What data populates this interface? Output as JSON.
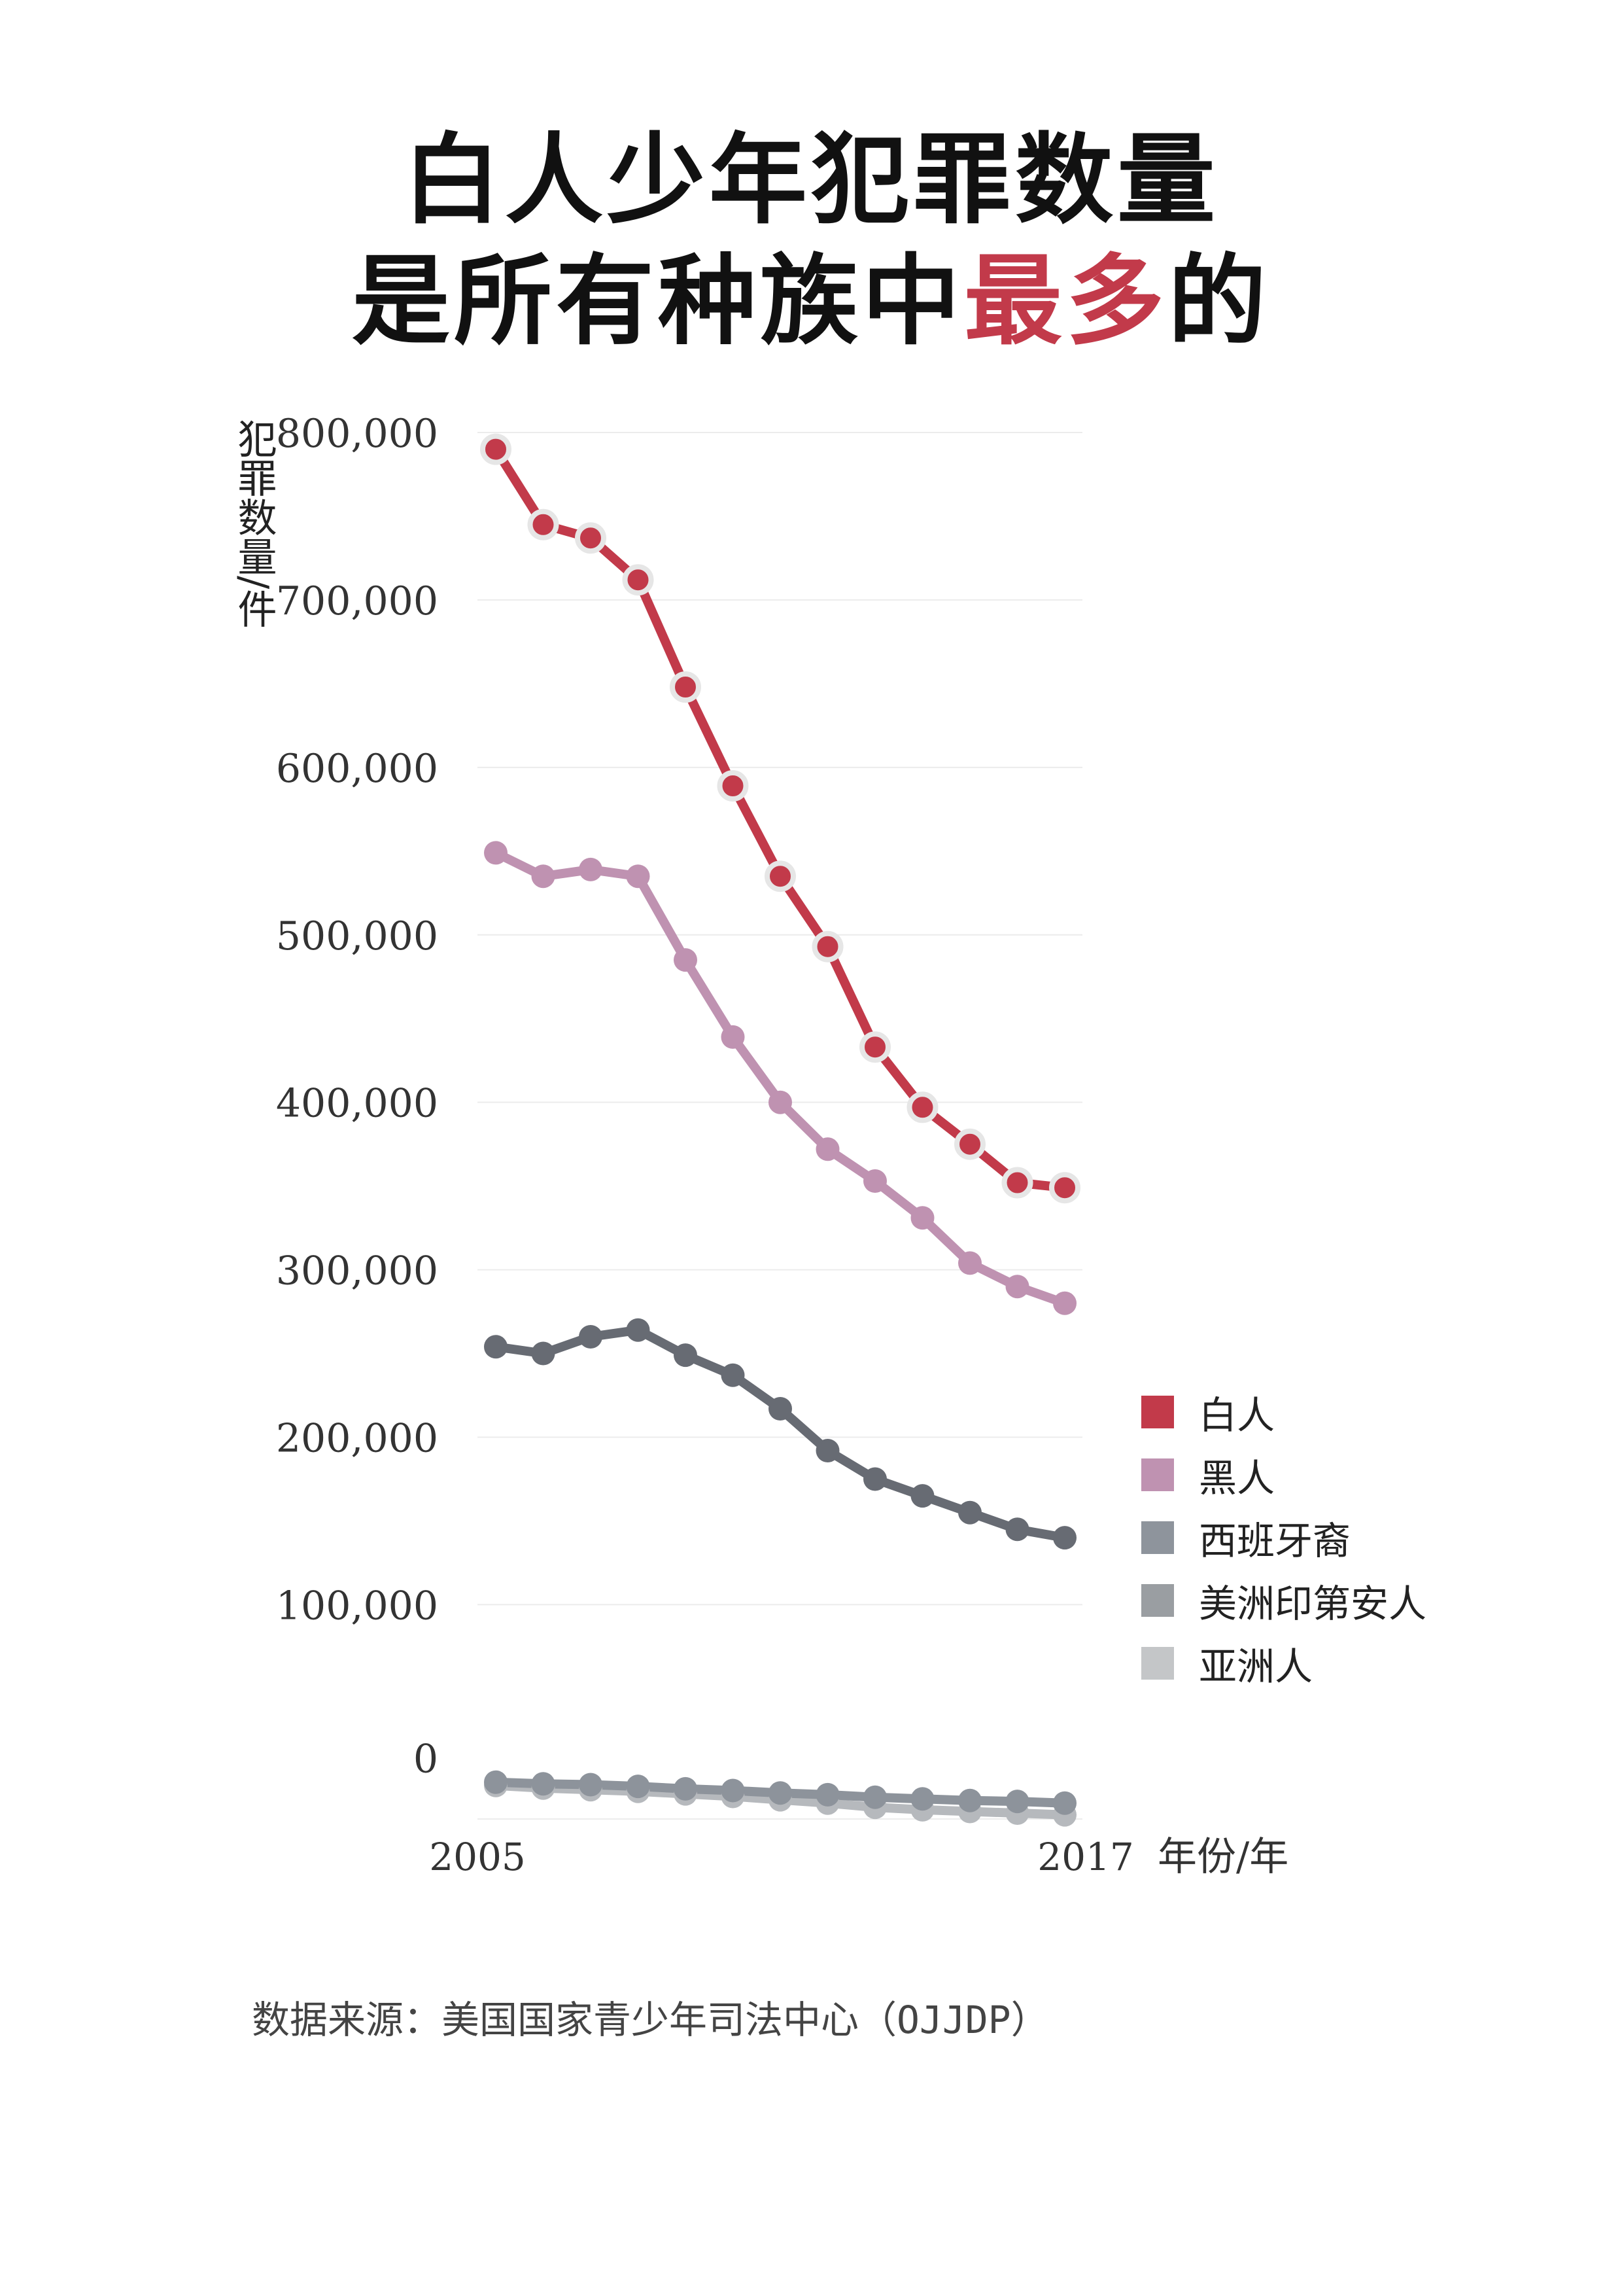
{
  "title": {
    "line1": "白人少年犯罪数量",
    "line2_pre": "是所有种族中",
    "line2_accent": "最多",
    "line2_post": "的"
  },
  "source": "数据来源：美国国家青少年司法中心（OJJDP）",
  "colors": {
    "accent": "#c23a4a"
  },
  "chart_data": {
    "type": "line",
    "title": "白人少年犯罪数量是所有种族中最多的",
    "ylabel": "犯罪数量/件",
    "xlabel": "年份/年",
    "x": [
      2005,
      2006,
      2007,
      2008,
      2009,
      2010,
      2011,
      2012,
      2013,
      2014,
      2015,
      2016,
      2017
    ],
    "x_tick_labels": [
      "2005",
      "2017"
    ],
    "y_ticks": [
      0,
      100000,
      200000,
      300000,
      400000,
      500000,
      600000,
      700000,
      800000
    ],
    "y_tick_labels": [
      "0",
      "100,000",
      "200,000",
      "300,000",
      "400,000",
      "500,000",
      "600,000",
      "700,000",
      "800,000"
    ],
    "ylim": [
      -28000,
      800000
    ],
    "grid": true,
    "legend": "right",
    "series": [
      {
        "name": "白人",
        "color": "#c23a4a",
        "markerStroke": "#e6e6e6",
        "values": [
          790000,
          745000,
          737000,
          712000,
          648000,
          589000,
          535000,
          493000,
          433000,
          397000,
          375000,
          352000,
          349000
        ]
      },
      {
        "name": "黑人",
        "color": "#bf92b1",
        "markerStroke": null,
        "values": [
          549000,
          535000,
          539000,
          535000,
          485000,
          439000,
          400000,
          372000,
          353000,
          331000,
          304000,
          290000,
          280000
        ]
      },
      {
        "name": "西班牙裔",
        "color": "#676b73",
        "legendColor": "#8e949c",
        "markerStroke": null,
        "values": [
          254000,
          250000,
          260000,
          264000,
          249000,
          237000,
          217000,
          192000,
          175000,
          165000,
          155000,
          145000,
          140000
        ]
      },
      {
        "name": "美洲印第安人",
        "color": "#8d939b",
        "legendColor": "#9a9ea2",
        "markerStroke": null,
        "values": [
          -6000,
          -7000,
          -7500,
          -8500,
          -10000,
          -11000,
          -12500,
          -13500,
          -15000,
          -16000,
          -17000,
          -17500,
          -18500
        ]
      },
      {
        "name": "亚洲人",
        "color": "#b6b9bd",
        "legendColor": "#c4c6c8",
        "markerStroke": null,
        "values": [
          -8000,
          -9500,
          -10500,
          -11500,
          -13000,
          -14500,
          -16500,
          -18500,
          -21000,
          -22500,
          -23500,
          -24500,
          -25500
        ]
      }
    ]
  }
}
